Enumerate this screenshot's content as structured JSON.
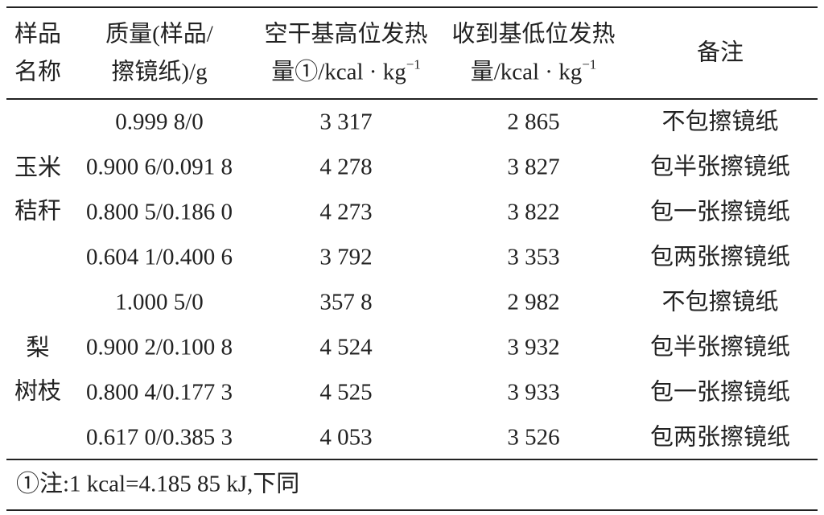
{
  "table": {
    "header": [
      {
        "lines": [
          "样品",
          "名称"
        ]
      },
      {
        "lines": [
          "质量(样品/",
          "擦镜纸)/g"
        ]
      },
      {
        "lines": [
          "空干基高位发热",
          "量①/kcal · kg"
        ],
        "sup": "−1"
      },
      {
        "lines": [
          "收到基低位发热",
          "量/kcal · kg"
        ],
        "sup": "−1"
      },
      {
        "lines": [
          "备注"
        ]
      }
    ],
    "groups": [
      {
        "name": [
          "玉米",
          "秸秆"
        ],
        "rows": [
          [
            "0.999 8/0",
            "3 317",
            "2 865",
            "不包擦镜纸"
          ],
          [
            "0.900 6/0.091 8",
            "4 278",
            "3 827",
            "包半张擦镜纸"
          ],
          [
            "0.800 5/0.186 0",
            "4 273",
            "3 822",
            "包一张擦镜纸"
          ],
          [
            "0.604 1/0.400 6",
            "3 792",
            "3 353",
            "包两张擦镜纸"
          ]
        ]
      },
      {
        "name": [
          "梨",
          "树枝"
        ],
        "rows": [
          [
            "1.000 5/0",
            "357 8",
            "2 982",
            "不包擦镜纸"
          ],
          [
            "0.900 2/0.100 8",
            "4 524",
            "3 932",
            "包半张擦镜纸"
          ],
          [
            "0.800 4/0.177 3",
            "4 525",
            "3 933",
            "包一张擦镜纸"
          ],
          [
            "0.617 0/0.385 3",
            "4 053",
            "3 526",
            "包两张擦镜纸"
          ]
        ]
      }
    ],
    "footnote": "①注:1 kcal=4.185 85 kJ,下同"
  }
}
